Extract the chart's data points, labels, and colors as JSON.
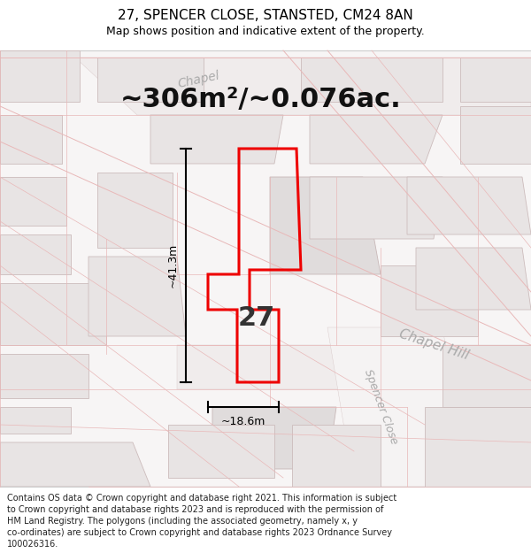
{
  "title": "27, SPENCER CLOSE, STANSTED, CM24 8AN",
  "subtitle": "Map shows position and indicative extent of the property.",
  "area_text": "~306m²/~0.076ac.",
  "label_27": "27",
  "dim_vertical": "~41.3m",
  "dim_horizontal": "~18.6m",
  "footer_lines": [
    "Contains OS data © Crown copyright and database right 2021. This information is subject",
    "to Crown copyright and database rights 2023 and is reproduced with the permission of",
    "HM Land Registry. The polygons (including the associated geometry, namely x, y",
    "co-ordinates) are subject to Crown copyright and database rights 2023 Ordnance Survey",
    "100026316."
  ],
  "bg_color": "#ffffff",
  "map_bg": "#f7f5f5",
  "bld_fill": "#e8e4e4",
  "bld_edge": "#ccbcbc",
  "road_line_color": "#e8b8b8",
  "plot_color": "#ee0000",
  "dim_color": "#000000",
  "label_color": "#aaaaaa",
  "title_color": "#000000",
  "footer_color": "#222222",
  "title_fontsize": 11,
  "subtitle_fontsize": 9,
  "area_fontsize": 22,
  "label_27_fontsize": 22,
  "dim_fontsize": 9,
  "road_label_fontsize": 10,
  "footer_fontsize": 7
}
